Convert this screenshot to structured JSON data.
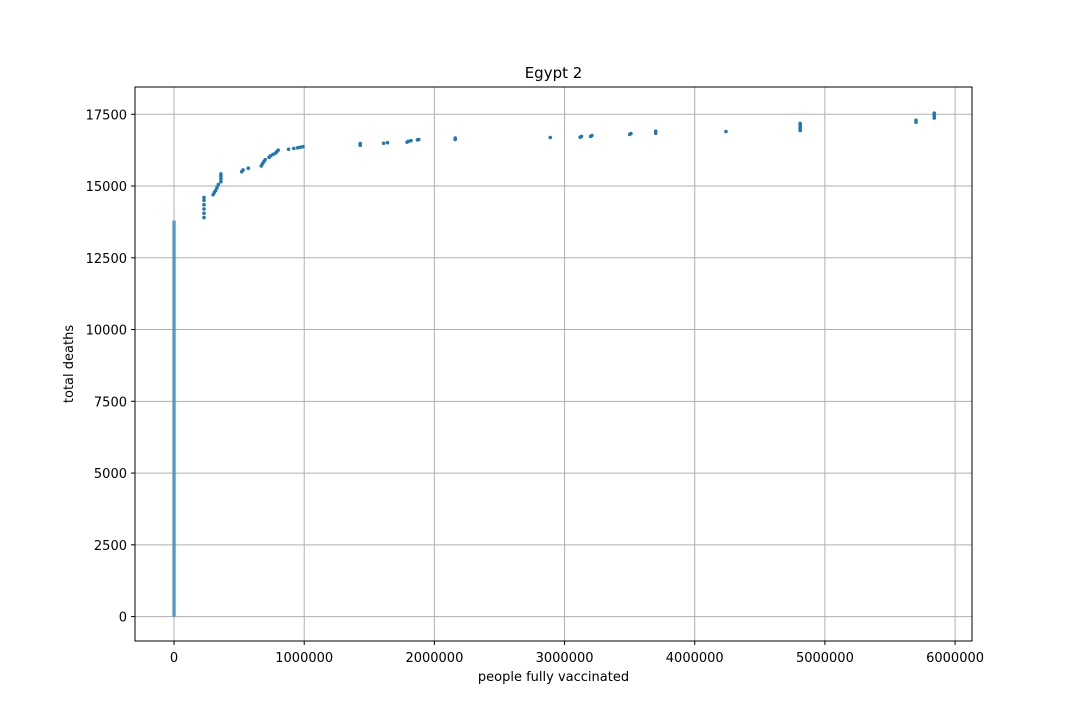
{
  "chart_data": {
    "type": "scatter",
    "title": "Egypt 2",
    "xlabel": "people fully vaccinated",
    "ylabel": "total deaths",
    "xlim": [
      -300000,
      6130000
    ],
    "ylim": [
      -850,
      18450
    ],
    "xticks": [
      0,
      1000000,
      2000000,
      3000000,
      4000000,
      5000000,
      6000000
    ],
    "xtick_labels": [
      "0",
      "1000000",
      "2000000",
      "3000000",
      "4000000",
      "5000000",
      "6000000"
    ],
    "yticks": [
      0,
      2500,
      5000,
      7500,
      10000,
      12500,
      15000,
      17500
    ],
    "ytick_labels": [
      "0",
      "2500",
      "5000",
      "7500",
      "10000",
      "12500",
      "15000",
      "17500"
    ],
    "grid": true,
    "marker_color": "#1f77b4",
    "vertical_cluster": {
      "x": 0,
      "y_min": 0,
      "y_max": 13800
    },
    "points": [
      [
        230000,
        13900
      ],
      [
        230000,
        14050
      ],
      [
        230000,
        14200
      ],
      [
        230000,
        14350
      ],
      [
        230000,
        14500
      ],
      [
        230000,
        14600
      ],
      [
        300000,
        14700
      ],
      [
        310000,
        14780
      ],
      [
        320000,
        14850
      ],
      [
        330000,
        14950
      ],
      [
        340000,
        15050
      ],
      [
        360000,
        15150
      ],
      [
        360000,
        15250
      ],
      [
        360000,
        15350
      ],
      [
        360000,
        15420
      ],
      [
        520000,
        15500
      ],
      [
        530000,
        15560
      ],
      [
        570000,
        15620
      ],
      [
        670000,
        15700
      ],
      [
        680000,
        15780
      ],
      [
        690000,
        15850
      ],
      [
        700000,
        15920
      ],
      [
        730000,
        16000
      ],
      [
        740000,
        16050
      ],
      [
        760000,
        16100
      ],
      [
        780000,
        16150
      ],
      [
        790000,
        16200
      ],
      [
        800000,
        16250
      ],
      [
        880000,
        16280
      ],
      [
        920000,
        16310
      ],
      [
        950000,
        16330
      ],
      [
        970000,
        16350
      ],
      [
        990000,
        16370
      ],
      [
        1430000,
        16420
      ],
      [
        1430000,
        16480
      ],
      [
        1610000,
        16490
      ],
      [
        1640000,
        16510
      ],
      [
        1790000,
        16530
      ],
      [
        1800000,
        16560
      ],
      [
        1820000,
        16580
      ],
      [
        1870000,
        16610
      ],
      [
        1880000,
        16620
      ],
      [
        2160000,
        16620
      ],
      [
        2160000,
        16670
      ],
      [
        2890000,
        16690
      ],
      [
        3120000,
        16700
      ],
      [
        3130000,
        16730
      ],
      [
        3200000,
        16730
      ],
      [
        3210000,
        16760
      ],
      [
        3500000,
        16800
      ],
      [
        3510000,
        16830
      ],
      [
        3700000,
        16840
      ],
      [
        3700000,
        16880
      ],
      [
        3700000,
        16910
      ],
      [
        4240000,
        16900
      ],
      [
        4810000,
        16930
      ],
      [
        4810000,
        16990
      ],
      [
        4810000,
        17050
      ],
      [
        4810000,
        17120
      ],
      [
        4810000,
        17180
      ],
      [
        5700000,
        17220
      ],
      [
        5700000,
        17290
      ],
      [
        5840000,
        17370
      ],
      [
        5840000,
        17430
      ],
      [
        5840000,
        17480
      ],
      [
        5840000,
        17540
      ]
    ]
  }
}
